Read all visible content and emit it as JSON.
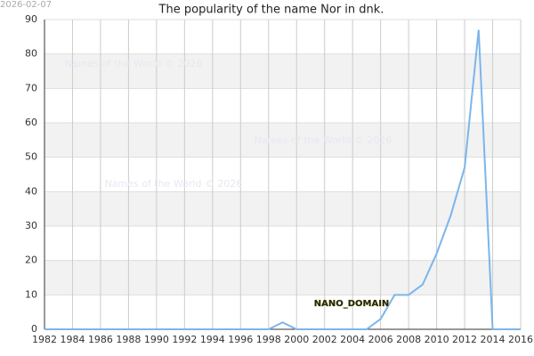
{
  "chart_data": {
    "type": "line",
    "title": "The popularity of the name Nor in dnk.",
    "date_stamp": "2026-02-07",
    "watermarks": [
      "Names of the World © 2026",
      "Names of the World © 2026",
      "Names of the World © 2026"
    ],
    "annotation": "NANO_DOMAIN",
    "x": [
      1982,
      1983,
      1984,
      1985,
      1986,
      1987,
      1988,
      1989,
      1990,
      1991,
      1992,
      1993,
      1994,
      1995,
      1996,
      1997,
      1998,
      1999,
      2000,
      2001,
      2002,
      2003,
      2004,
      2005,
      2006,
      2007,
      2008,
      2009,
      2010,
      2011,
      2012,
      2013,
      2014,
      2015,
      2016
    ],
    "values": [
      0,
      0,
      0,
      0,
      0,
      0,
      0,
      0,
      0,
      0,
      0,
      0,
      0,
      0,
      0,
      0,
      0,
      2,
      0,
      0,
      0,
      0,
      0,
      0,
      3,
      10,
      10,
      13,
      22,
      33,
      47,
      87,
      0,
      0,
      0
    ],
    "color": "#7cb5ec",
    "xlim": [
      1982,
      2016
    ],
    "xticks": [
      1982,
      1984,
      1986,
      1988,
      1990,
      1992,
      1994,
      1996,
      1998,
      2000,
      2002,
      2004,
      2006,
      2008,
      2010,
      2012,
      2014,
      2016
    ],
    "ylim": [
      0,
      90
    ],
    "yticks": [
      0,
      10,
      20,
      30,
      40,
      50,
      60,
      70,
      80,
      90
    ],
    "grid": true,
    "band_color": "#f2f2f2"
  }
}
